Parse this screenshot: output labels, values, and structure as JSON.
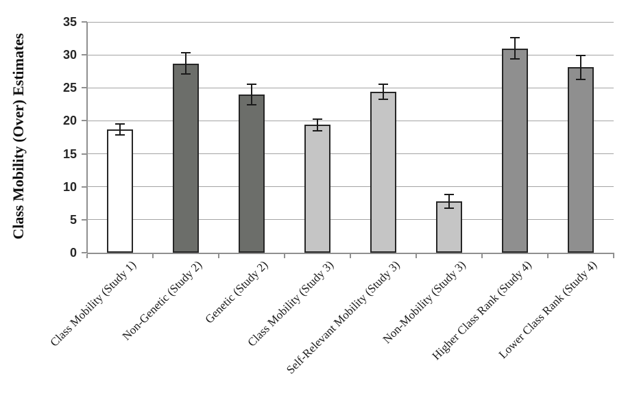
{
  "chart_data": {
    "type": "bar",
    "title": "",
    "xlabel": "",
    "ylabel": "Class Mobility (Over) Estimates",
    "ylim": [
      0,
      35
    ],
    "ytick_interval": 5,
    "ytick_labels": [
      "0",
      "5",
      "10",
      "15",
      "20",
      "25",
      "30",
      "35"
    ],
    "grid": "horizontal gridlines on",
    "legend_position": "none",
    "categories": [
      "Class Mobility (Study 1)",
      "Non-Genetic (Study 2)",
      "Genetic (Study 2)",
      "Class Mobility (Study 3)",
      "Self-Relevant Mobility (Study 3)",
      "Non-Mobility (Study 3)",
      "Higher Class Rank (Study 4)",
      "Lower Class Rank (Study 4)"
    ],
    "series": [
      {
        "name": "Class Mobility (Over) Estimates",
        "values": [
          18.7,
          28.7,
          24.0,
          19.4,
          24.4,
          7.8,
          31.0,
          28.1
        ],
        "error_bars": [
          0.8,
          1.6,
          1.6,
          0.9,
          1.1,
          1.0,
          1.6,
          1.8
        ]
      }
    ],
    "bar_fill_colors": [
      "#FFFFFF",
      "#6C6E6A",
      "#6C6E6A",
      "#C5C5C5",
      "#C5C5C5",
      "#C5C5C5",
      "#8F8F8F",
      "#8F8F8F"
    ],
    "bar_border_color": "#262626",
    "error_bar_color": "#1A1A1A",
    "gridline_color": "#A3A3A3",
    "axis_color": "#8F8F8F",
    "tick_text_color": "#262626",
    "label_text_color": "#1A1A1A",
    "background_color": "#FFFFFF"
  }
}
